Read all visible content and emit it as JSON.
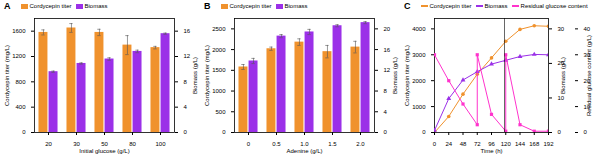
{
  "chart_data": [
    {
      "type": "bar",
      "title": "A",
      "x_label": "Initial glucose (g/L)",
      "y_label": "Cordycepin titer (mg/L)",
      "y2_label": "Biomass (g/L)",
      "categories": [
        "20",
        "30",
        "50",
        "80",
        "100"
      ],
      "series": [
        {
          "name": "Cordycepin titer",
          "color": "#f0922d",
          "values": [
            1580,
            1650,
            1580,
            1380,
            1340
          ],
          "errors": [
            40,
            70,
            50,
            150,
            20
          ]
        },
        {
          "name": "Biomass",
          "color": "#9b30e8",
          "axis": "y2",
          "values": [
            9.6,
            10.9,
            11.6,
            12.8,
            15.6
          ],
          "errors": [
            0.1,
            0.1,
            0.2,
            0.2,
            0.1
          ]
        }
      ],
      "ylim": [
        0,
        1800
      ],
      "yticks": [
        0,
        400,
        800,
        1200,
        1600
      ],
      "y2lim": [
        0,
        18
      ],
      "y2ticks": [
        0,
        4,
        8,
        12,
        16
      ],
      "legend": "top-left"
    },
    {
      "type": "bar",
      "title": "B",
      "x_label": "Adenine (g/L)",
      "y_label": "Cordycepin titer (mg/L)",
      "y2_label": "Biomass (g/L)",
      "categories": [
        "0",
        "0.5",
        "1.0",
        "1.5",
        "2.0"
      ],
      "series": [
        {
          "name": "Cordycepin titer",
          "color": "#f0922d",
          "values": [
            1580,
            2020,
            2180,
            1950,
            2060
          ],
          "errors": [
            60,
            40,
            80,
            150,
            140
          ]
        },
        {
          "name": "Biomass",
          "color": "#9b30e8",
          "axis": "y2",
          "values": [
            13.8,
            18.6,
            19.4,
            20.6,
            21.2
          ],
          "errors": [
            0.5,
            0.3,
            0.5,
            0.2,
            0.2
          ]
        }
      ],
      "ylim": [
        0,
        2750
      ],
      "yticks": [
        0,
        500,
        1000,
        1500,
        2000,
        2500
      ],
      "y2lim": [
        0,
        22
      ],
      "y2ticks": [
        0,
        4,
        8,
        12,
        16,
        20
      ],
      "legend": "top-left"
    },
    {
      "type": "line",
      "title": "C",
      "x_label": "Time (h)",
      "y_label": "Cordycepin titer (mg/L)",
      "y2_label": "Biomass (g/L)",
      "y3_label": "Residual glucose content (g/L)",
      "series": [
        {
          "name": "Cordycepin titer",
          "color": "#f0922d",
          "marker": "circle",
          "x": [
            0,
            24,
            48,
            72,
            96,
            120,
            144,
            168,
            192
          ],
          "values": [
            0,
            620,
            1480,
            2250,
            2880,
            3520,
            3980,
            4120,
            4100
          ]
        },
        {
          "name": "Biomass",
          "color": "#9b30e8",
          "marker": "triangle",
          "axis": "y2",
          "x": [
            0,
            24,
            48,
            72,
            96,
            120,
            144,
            168,
            192
          ],
          "values": [
            0.6,
            9.8,
            15.2,
            17.6,
            19.8,
            20.9,
            22,
            22.6,
            22.5
          ]
        },
        {
          "name": "Residual glucose content",
          "color": "#ff33cc",
          "marker": "square",
          "axis": "y3",
          "x": [
            0,
            24,
            48,
            72,
            72,
            96,
            120,
            120,
            144,
            168,
            192
          ],
          "values": [
            30,
            20,
            11,
            3,
            30,
            7,
            0.5,
            30,
            3,
            0.5,
            0.5
          ]
        }
      ],
      "xlim": [
        0,
        192
      ],
      "xticks": [
        0,
        24,
        48,
        72,
        96,
        120,
        144,
        168,
        192
      ],
      "ylim": [
        0,
        4400
      ],
      "yticks": [
        0,
        1000,
        2000,
        3000,
        4000
      ],
      "y2lim": [
        0,
        33
      ],
      "y2ticks": [
        0,
        10,
        20,
        30
      ],
      "y3lim": [
        0,
        44
      ],
      "y3ticks": [
        0,
        10,
        20,
        30,
        40
      ],
      "legend": "top-left"
    }
  ]
}
